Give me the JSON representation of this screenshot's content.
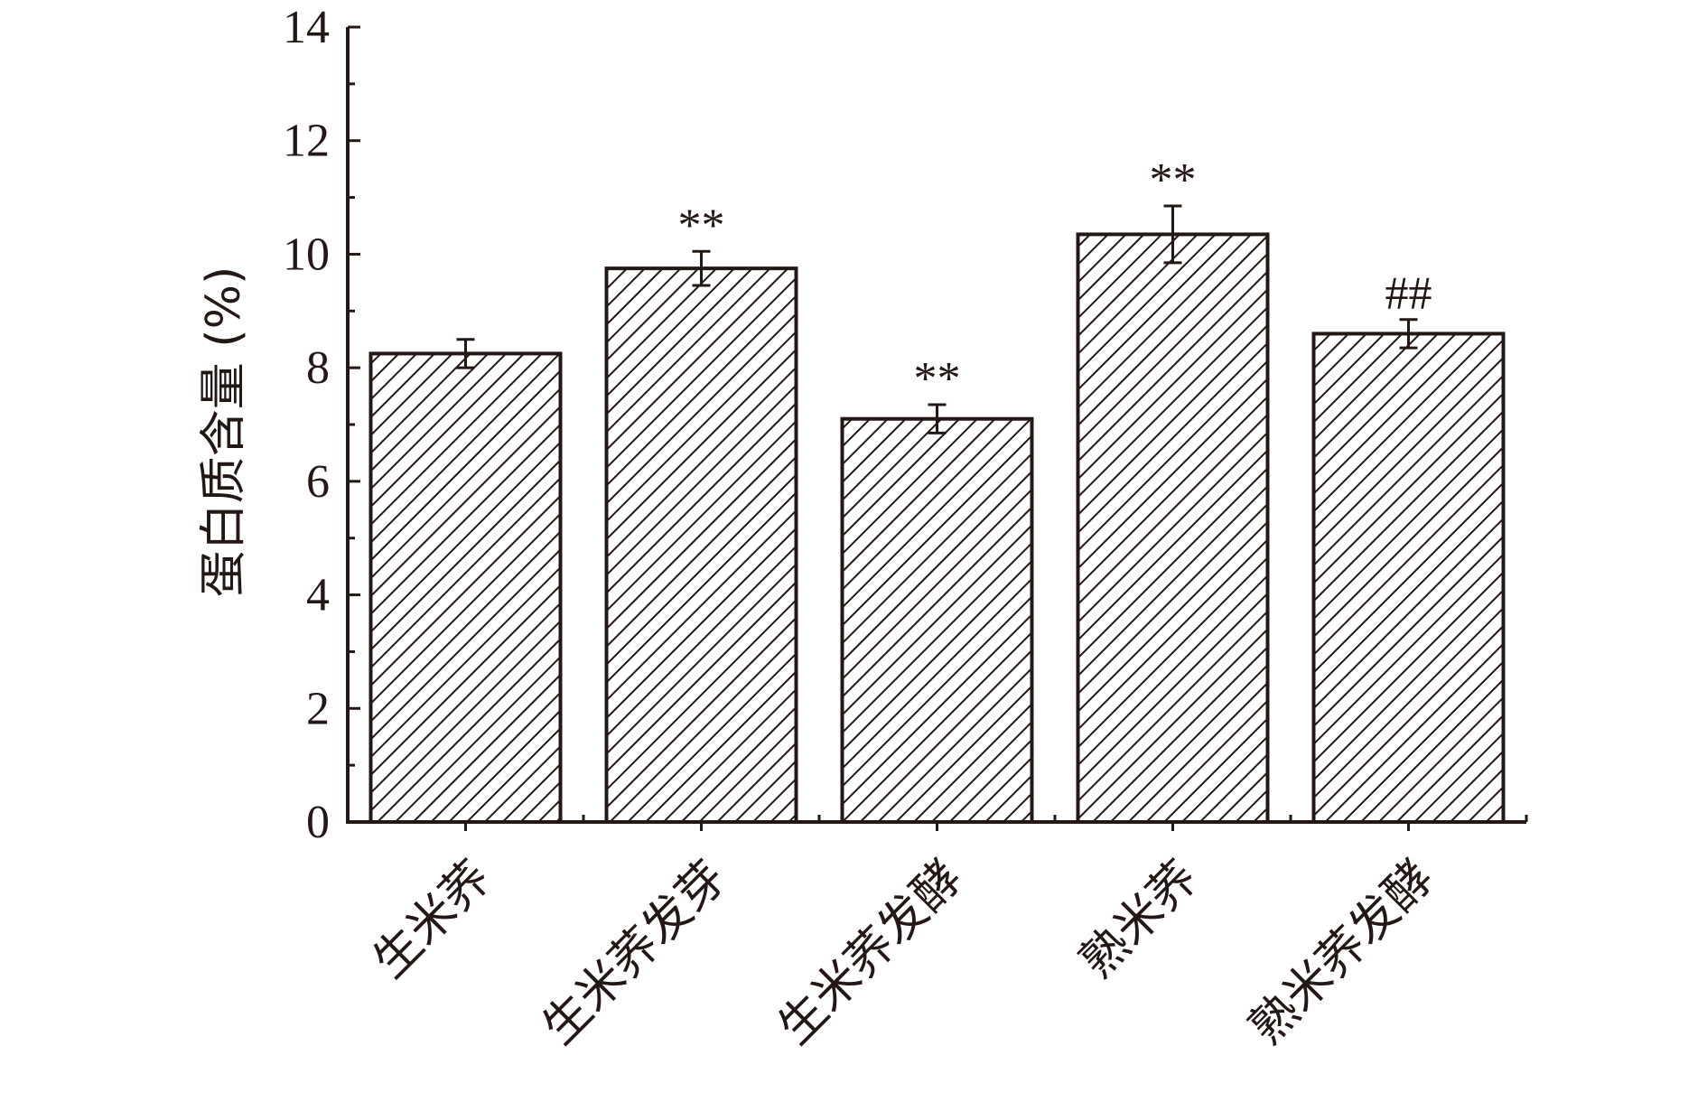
{
  "chart_data": {
    "type": "bar",
    "categories": [
      "生米荞",
      "生米荞发芽",
      "生米荞发酵",
      "熟米荞",
      "熟米荞发酵"
    ],
    "values": [
      8.25,
      9.75,
      7.1,
      10.35,
      8.6
    ],
    "errors": [
      0.25,
      0.3,
      0.25,
      0.5,
      0.25
    ],
    "significance": [
      "",
      "**",
      "**",
      "**",
      "##"
    ],
    "xlabel": "",
    "ylabel": "蛋白质含量 (%)",
    "ylim": [
      0,
      14
    ],
    "yticks": [
      "0",
      "2",
      "4",
      "6",
      "8",
      "10",
      "12",
      "14"
    ],
    "bar_fill": "diagonal-hatch",
    "grid": false,
    "colors": {
      "ink": "#231815",
      "background": "#ffffff"
    }
  }
}
